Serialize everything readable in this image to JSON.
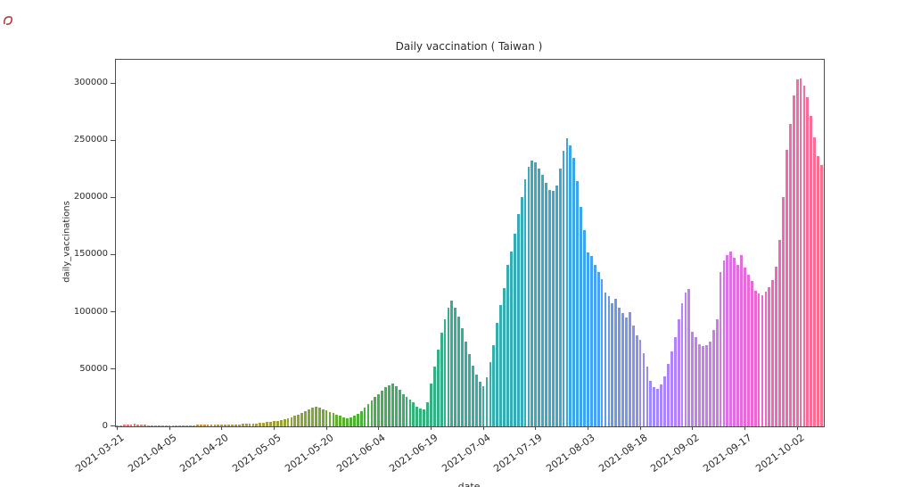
{
  "chart_data": {
    "type": "bar",
    "title": "Daily vaccination ( Taiwan )",
    "xlabel": "date",
    "ylabel": "daily_vaccinations",
    "ylim": [
      0,
      321000
    ],
    "yticks": [
      0,
      50000,
      100000,
      150000,
      200000,
      250000,
      300000
    ],
    "xtick_labels": [
      "2021-03-21",
      "2021-04-05",
      "2021-04-20",
      "2021-05-05",
      "2021-05-20",
      "2021-06-04",
      "2021-06-19",
      "2021-07-04",
      "2021-07-19",
      "2021-08-03",
      "2021-08-18",
      "2021-09-02",
      "2021-09-17",
      "2021-10-02"
    ],
    "grid": false,
    "legend": "none",
    "start_date": "2021-03-21",
    "end_date": "2021-10-09",
    "bar_color_style": "rainbow hue gradient over time (seaborn husl-like palette, one color per day)",
    "palette_anchors": [
      "#f77189",
      "#e18532",
      "#bb9832",
      "#8fa631",
      "#50b131",
      "#34b077",
      "#35ae9e",
      "#37aabf",
      "#41a3ef",
      "#9c8bf4",
      "#cc7af4",
      "#f263c8",
      "#f77189"
    ],
    "values": [
      800,
      1100,
      1400,
      1700,
      1900,
      2100,
      1800,
      1500,
      1300,
      1100,
      1000,
      900,
      850,
      800,
      850,
      900,
      1000,
      1100,
      1150,
      1100,
      1050,
      1100,
      1150,
      1200,
      1300,
      1250,
      1200,
      1300,
      1400,
      1500,
      1450,
      1500,
      1600,
      1700,
      1800,
      1900,
      2000,
      2100,
      2300,
      2500,
      2700,
      3000,
      3300,
      3600,
      4000,
      4400,
      4800,
      5300,
      6000,
      7000,
      8000,
      9000,
      10200,
      11800,
      13500,
      15200,
      16300,
      17000,
      16200,
      15000,
      13800,
      12600,
      11500,
      10400,
      9200,
      8000,
      7300,
      7900,
      9200,
      10800,
      13000,
      16200,
      19500,
      23000,
      26000,
      28500,
      31500,
      34000,
      36000,
      37300,
      34800,
      32000,
      28500,
      25500,
      23400,
      21000,
      17500,
      15800,
      14500,
      21000,
      37500,
      52000,
      67000,
      82000,
      94000,
      104000,
      110000,
      104000,
      96000,
      86000,
      74000,
      63000,
      53000,
      45000,
      39000,
      35500,
      43000,
      56000,
      71000,
      91000,
      106000,
      121000,
      141000,
      153000,
      169000,
      186000,
      201000,
      216000,
      227000,
      233000,
      231000,
      226000,
      220000,
      213000,
      207000,
      206000,
      211000,
      226000,
      241000,
      252500,
      246000,
      235000,
      215000,
      192000,
      172000,
      152000,
      149000,
      141000,
      135000,
      129000,
      117000,
      114000,
      108000,
      112000,
      104000,
      99000,
      95000,
      100000,
      88000,
      80000,
      76000,
      64000,
      52000,
      40000,
      34000,
      33000,
      37000,
      44000,
      55000,
      66000,
      78000,
      94000,
      108000,
      117000,
      120000,
      83000,
      78000,
      72000,
      70000,
      71000,
      74000,
      84000,
      94000,
      135000,
      145000,
      150000,
      153000,
      148000,
      141000,
      150000,
      139000,
      133000,
      127000,
      119000,
      116000,
      115000,
      118000,
      122000,
      128000,
      140000,
      163000,
      201000,
      242000,
      265000,
      290000,
      304000,
      305000,
      298000,
      288000,
      272000,
      253000,
      237000,
      229000
    ]
  }
}
